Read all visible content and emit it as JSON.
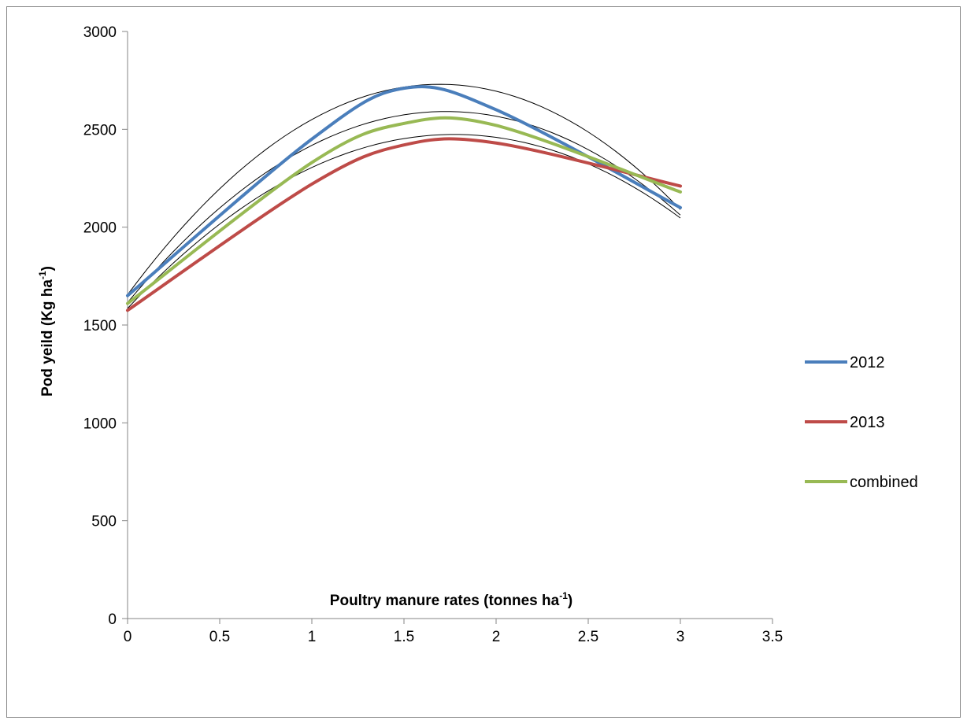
{
  "chart_data": {
    "type": "line",
    "title": "",
    "xlabel": {
      "main": "Poultry manure rates (tonnes ha",
      "sup": "-1",
      "close": ")"
    },
    "ylabel": {
      "main": "Pod yeild (Kg ha",
      "sup": "-1",
      "close": ")"
    },
    "xlim": [
      0,
      3.5
    ],
    "ylim": [
      0,
      3000
    ],
    "x_ticks": [
      0,
      0.5,
      1,
      1.5,
      2,
      2.5,
      3,
      3.5
    ],
    "x_tick_labels": [
      "0",
      "0.5",
      "1",
      "1.5",
      "2",
      "2.5",
      "3",
      "3.5"
    ],
    "y_ticks": [
      0,
      500,
      1000,
      1500,
      2000,
      2500,
      3000
    ],
    "y_tick_labels": [
      "0",
      "500",
      "1000",
      "1500",
      "2000",
      "2500",
      "3000"
    ],
    "grid": false,
    "legend_position": "right",
    "series": [
      {
        "name": "2012",
        "color": "#4a7ebb",
        "x": [
          0,
          1,
          1.5,
          2,
          3
        ],
        "y": [
          1650,
          2450,
          2710,
          2600,
          2100
        ]
      },
      {
        "name": "2013",
        "color": "#be4b48",
        "x": [
          0,
          1,
          1.5,
          2,
          3
        ],
        "y": [
          1575,
          2220,
          2420,
          2430,
          2210
        ]
      },
      {
        "name": "combined",
        "color": "#98b954",
        "x": [
          0,
          1,
          1.5,
          2,
          3
        ],
        "y": [
          1610,
          2330,
          2530,
          2520,
          2180
        ]
      }
    ],
    "trendlines": [
      {
        "color": "#000000",
        "coeffs": [
          1655,
          1270,
          -375
        ]
      },
      {
        "color": "#000000",
        "coeffs": [
          1585,
          1003,
          -283
        ]
      },
      {
        "color": "#000000",
        "coeffs": [
          1615,
          1130,
          -327
        ]
      }
    ]
  }
}
